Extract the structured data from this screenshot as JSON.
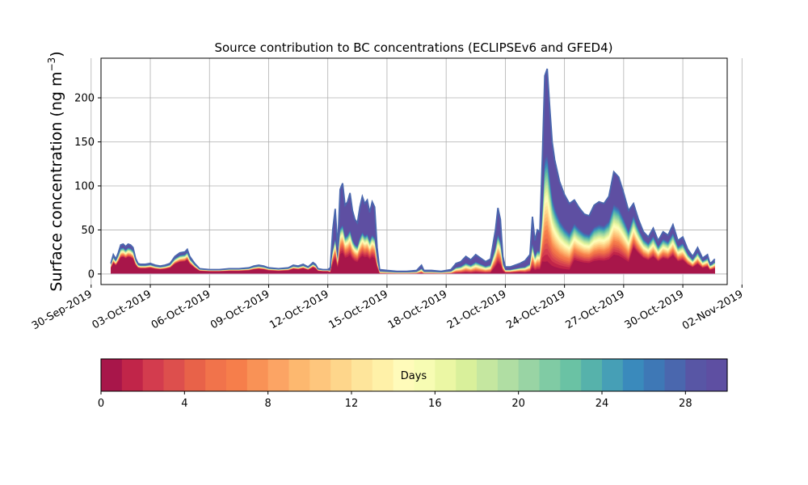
{
  "chart_data": {
    "type": "area",
    "title": "Source contribution to BC concentrations (ECLIPSEv6 and GFED4)",
    "ylabel_main": "Surface concentration (ng m",
    "ylabel_exp": "−3",
    "ylabel_close": ")",
    "xlabel": "",
    "x_start": "2019-10-01",
    "x_end": "2019-11-01",
    "xlim": [
      "2019-09-30T12:00",
      "2019-11-01T06:00"
    ],
    "ylim": [
      -12,
      245
    ],
    "yticks": [
      0,
      50,
      100,
      150,
      200
    ],
    "xtick_labels": [
      "30-Sep-2019",
      "03-Oct-2019",
      "06-Oct-2019",
      "09-Oct-2019",
      "12-Oct-2019",
      "15-Oct-2019",
      "18-Oct-2019",
      "21-Oct-2019",
      "24-Oct-2019",
      "27-Oct-2019",
      "30-Oct-2019",
      "02-Nov-2019"
    ],
    "xtick_dates": [
      "2019-09-30",
      "2019-10-03",
      "2019-10-06",
      "2019-10-09",
      "2019-10-12",
      "2019-10-15",
      "2019-10-18",
      "2019-10-21",
      "2019-10-24",
      "2019-10-27",
      "2019-10-30",
      "2019-11-02"
    ],
    "grid": true,
    "total_series": [
      [
        "2019-10-01T00:00",
        12
      ],
      [
        "2019-10-01T03:00",
        22
      ],
      [
        "2019-10-01T06:00",
        17
      ],
      [
        "2019-10-01T09:00",
        24
      ],
      [
        "2019-10-01T12:00",
        33
      ],
      [
        "2019-10-01T15:00",
        34
      ],
      [
        "2019-10-01T18:00",
        31
      ],
      [
        "2019-10-01T21:00",
        34
      ],
      [
        "2019-10-02T00:00",
        33
      ],
      [
        "2019-10-02T03:00",
        30
      ],
      [
        "2019-10-02T06:00",
        18
      ],
      [
        "2019-10-02T09:00",
        12
      ],
      [
        "2019-10-02T12:00",
        11
      ],
      [
        "2019-10-02T18:00",
        11
      ],
      [
        "2019-10-03T00:00",
        12
      ],
      [
        "2019-10-03T06:00",
        10
      ],
      [
        "2019-10-03T12:00",
        9
      ],
      [
        "2019-10-03T18:00",
        10
      ],
      [
        "2019-10-04T00:00",
        12
      ],
      [
        "2019-10-04T06:00",
        20
      ],
      [
        "2019-10-04T12:00",
        24
      ],
      [
        "2019-10-04T18:00",
        25
      ],
      [
        "2019-10-04T21:00",
        28
      ],
      [
        "2019-10-05T00:00",
        20
      ],
      [
        "2019-10-05T06:00",
        12
      ],
      [
        "2019-10-05T12:00",
        6
      ],
      [
        "2019-10-06T00:00",
        5
      ],
      [
        "2019-10-06T12:00",
        5
      ],
      [
        "2019-10-07T00:00",
        6
      ],
      [
        "2019-10-07T12:00",
        6
      ],
      [
        "2019-10-08T00:00",
        7
      ],
      [
        "2019-10-08T06:00",
        9
      ],
      [
        "2019-10-08T12:00",
        10
      ],
      [
        "2019-10-08T18:00",
        9
      ],
      [
        "2019-10-09T00:00",
        7
      ],
      [
        "2019-10-09T12:00",
        6
      ],
      [
        "2019-10-10T00:00",
        7
      ],
      [
        "2019-10-10T06:00",
        10
      ],
      [
        "2019-10-10T12:00",
        9
      ],
      [
        "2019-10-10T18:00",
        11
      ],
      [
        "2019-10-11T00:00",
        8
      ],
      [
        "2019-10-11T06:00",
        13
      ],
      [
        "2019-10-11T09:00",
        11
      ],
      [
        "2019-10-11T12:00",
        6
      ],
      [
        "2019-10-11T18:00",
        5
      ],
      [
        "2019-10-12T00:00",
        5
      ],
      [
        "2019-10-12T03:00",
        7
      ],
      [
        "2019-10-12T06:00",
        50
      ],
      [
        "2019-10-12T09:00",
        74
      ],
      [
        "2019-10-12T12:00",
        30
      ],
      [
        "2019-10-12T15:00",
        96
      ],
      [
        "2019-10-12T18:00",
        103
      ],
      [
        "2019-10-12T21:00",
        78
      ],
      [
        "2019-10-13T00:00",
        82
      ],
      [
        "2019-10-13T03:00",
        92
      ],
      [
        "2019-10-13T06:00",
        72
      ],
      [
        "2019-10-13T09:00",
        62
      ],
      [
        "2019-10-13T12:00",
        58
      ],
      [
        "2019-10-13T15:00",
        76
      ],
      [
        "2019-10-13T18:00",
        88
      ],
      [
        "2019-10-13T21:00",
        80
      ],
      [
        "2019-10-14T00:00",
        84
      ],
      [
        "2019-10-14T03:00",
        70
      ],
      [
        "2019-10-14T06:00",
        82
      ],
      [
        "2019-10-14T09:00",
        76
      ],
      [
        "2019-10-14T12:00",
        30
      ],
      [
        "2019-10-14T15:00",
        5
      ],
      [
        "2019-10-15T00:00",
        4
      ],
      [
        "2019-10-15T12:00",
        3
      ],
      [
        "2019-10-16T00:00",
        3
      ],
      [
        "2019-10-16T12:00",
        4
      ],
      [
        "2019-10-16T18:00",
        10
      ],
      [
        "2019-10-16T21:00",
        4
      ],
      [
        "2019-10-17T06:00",
        4
      ],
      [
        "2019-10-17T18:00",
        3
      ],
      [
        "2019-10-18T06:00",
        5
      ],
      [
        "2019-10-18T12:00",
        12
      ],
      [
        "2019-10-18T18:00",
        14
      ],
      [
        "2019-10-19T00:00",
        20
      ],
      [
        "2019-10-19T06:00",
        16
      ],
      [
        "2019-10-19T12:00",
        22
      ],
      [
        "2019-10-19T18:00",
        18
      ],
      [
        "2019-10-20T00:00",
        14
      ],
      [
        "2019-10-20T06:00",
        17
      ],
      [
        "2019-10-20T12:00",
        50
      ],
      [
        "2019-10-20T15:00",
        75
      ],
      [
        "2019-10-20T18:00",
        62
      ],
      [
        "2019-10-20T21:00",
        20
      ],
      [
        "2019-10-21T00:00",
        8
      ],
      [
        "2019-10-21T06:00",
        8
      ],
      [
        "2019-10-21T12:00",
        10
      ],
      [
        "2019-10-21T18:00",
        12
      ],
      [
        "2019-10-22T00:00",
        15
      ],
      [
        "2019-10-22T06:00",
        22
      ],
      [
        "2019-10-22T09:00",
        65
      ],
      [
        "2019-10-22T12:00",
        38
      ],
      [
        "2019-10-22T15:00",
        50
      ],
      [
        "2019-10-22T18:00",
        48
      ],
      [
        "2019-10-22T21:00",
        130
      ],
      [
        "2019-10-23T00:00",
        225
      ],
      [
        "2019-10-23T03:00",
        233
      ],
      [
        "2019-10-23T06:00",
        190
      ],
      [
        "2019-10-23T09:00",
        150
      ],
      [
        "2019-10-23T12:00",
        130
      ],
      [
        "2019-10-23T18:00",
        105
      ],
      [
        "2019-10-24T00:00",
        90
      ],
      [
        "2019-10-24T06:00",
        80
      ],
      [
        "2019-10-24T12:00",
        84
      ],
      [
        "2019-10-24T18:00",
        75
      ],
      [
        "2019-10-25T00:00",
        68
      ],
      [
        "2019-10-25T06:00",
        66
      ],
      [
        "2019-10-25T12:00",
        78
      ],
      [
        "2019-10-25T18:00",
        82
      ],
      [
        "2019-10-26T00:00",
        80
      ],
      [
        "2019-10-26T06:00",
        88
      ],
      [
        "2019-10-26T12:00",
        116
      ],
      [
        "2019-10-26T18:00",
        110
      ],
      [
        "2019-10-27T00:00",
        92
      ],
      [
        "2019-10-27T06:00",
        72
      ],
      [
        "2019-10-27T12:00",
        80
      ],
      [
        "2019-10-27T18:00",
        62
      ],
      [
        "2019-10-28T00:00",
        48
      ],
      [
        "2019-10-28T06:00",
        42
      ],
      [
        "2019-10-28T12:00",
        52
      ],
      [
        "2019-10-28T18:00",
        38
      ],
      [
        "2019-10-29T00:00",
        48
      ],
      [
        "2019-10-29T06:00",
        44
      ],
      [
        "2019-10-29T12:00",
        56
      ],
      [
        "2019-10-29T18:00",
        38
      ],
      [
        "2019-10-30T00:00",
        42
      ],
      [
        "2019-10-30T06:00",
        28
      ],
      [
        "2019-10-30T12:00",
        20
      ],
      [
        "2019-10-30T18:00",
        30
      ],
      [
        "2019-10-31T00:00",
        18
      ],
      [
        "2019-10-31T06:00",
        22
      ],
      [
        "2019-10-31T09:00",
        12
      ],
      [
        "2019-10-31T12:00",
        14
      ],
      [
        "2019-10-31T15:00",
        17
      ]
    ],
    "colorbar": {
      "label": "Days",
      "range": [
        0,
        30
      ],
      "ticks": [
        0,
        4,
        8,
        12,
        16,
        20,
        24,
        28
      ],
      "colors": [
        "#a8164a",
        "#c12549",
        "#d33c4e",
        "#dd4f4d",
        "#e86249",
        "#f1734b",
        "#f67e4b",
        "#f99256",
        "#fca464",
        "#fdb86f",
        "#fec67d",
        "#fed68b",
        "#fee59b",
        "#fff1a8",
        "#fffbba",
        "#f7fcb3",
        "#ebf7a4",
        "#d9f09b",
        "#c5e7a0",
        "#b0dea3",
        "#99d4a4",
        "#80cba4",
        "#6ac2a4",
        "#56b2ab",
        "#469fb6",
        "#3a8abc",
        "#3e78b6",
        "#4a67ae",
        "#5856a5",
        "#5e4fa2"
      ]
    }
  }
}
